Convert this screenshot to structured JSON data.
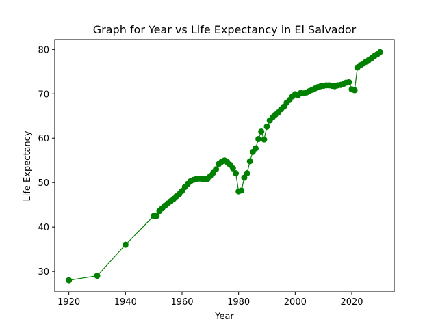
{
  "chart_data": {
    "type": "line",
    "title": "Graph for Year vs Life Expectancy in El Salvador",
    "xlabel": "Year",
    "ylabel": "Life Expectancy",
    "xlim": [
      1915,
      2035
    ],
    "ylim": [
      25.4,
      82.2
    ],
    "xticks": [
      1920,
      1940,
      1960,
      1980,
      2000,
      2020
    ],
    "yticks": [
      30,
      40,
      50,
      60,
      70,
      80
    ],
    "grid": false,
    "color": "#008000",
    "series": [
      {
        "x": [
          1920,
          1930,
          1940,
          1950,
          1951,
          1952,
          1953,
          1954,
          1955,
          1956,
          1957,
          1958,
          1959,
          1960,
          1961,
          1962,
          1963,
          1964,
          1965,
          1966,
          1967,
          1968,
          1969,
          1970,
          1971,
          1972,
          1973,
          1974,
          1975,
          1976,
          1977,
          1978,
          1979,
          1980,
          1981,
          1982,
          1983,
          1984,
          1985,
          1986,
          1987,
          1988,
          1989,
          1990,
          1991,
          1992,
          1993,
          1994,
          1995,
          1996,
          1997,
          1998,
          1999,
          2000,
          2001,
          2002,
          2003,
          2004,
          2005,
          2006,
          2007,
          2008,
          2009,
          2010,
          2011,
          2012,
          2013,
          2014,
          2015,
          2016,
          2017,
          2018,
          2019,
          2020,
          2021,
          2022,
          2023,
          2024,
          2025,
          2026,
          2027,
          2028,
          2029,
          2030
        ],
        "y": [
          28.0,
          29.0,
          36.0,
          42.5,
          42.5,
          43.6,
          44.2,
          44.8,
          45.3,
          45.8,
          46.3,
          46.9,
          47.4,
          48.1,
          49.0,
          49.7,
          50.3,
          50.6,
          50.8,
          50.9,
          50.8,
          50.8,
          50.8,
          51.5,
          52.2,
          53.0,
          54.2,
          54.7,
          55.0,
          54.6,
          54.0,
          53.2,
          52.1,
          48.0,
          48.2,
          51.1,
          52.1,
          54.8,
          56.9,
          57.7,
          59.8,
          61.5,
          59.7,
          62.6,
          64.0,
          64.7,
          65.3,
          65.8,
          66.5,
          67.1,
          68.0,
          68.6,
          69.4,
          69.9,
          69.7,
          70.2,
          70.1,
          70.3,
          70.6,
          70.9,
          71.2,
          71.5,
          71.7,
          71.8,
          71.9,
          71.9,
          71.8,
          71.7,
          71.9,
          72.0,
          72.2,
          72.5,
          72.6,
          71.0,
          70.8,
          75.9,
          76.4,
          76.8,
          77.2,
          77.6,
          78.0,
          78.5,
          78.9,
          79.4
        ]
      }
    ]
  }
}
